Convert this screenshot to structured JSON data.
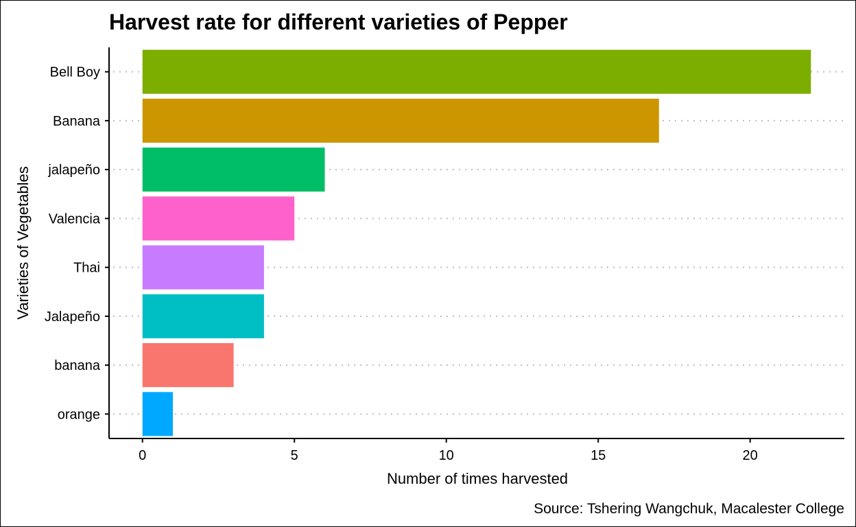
{
  "chart_data": {
    "type": "bar",
    "orientation": "horizontal",
    "title": "Harvest rate for different varieties of Pepper",
    "xlabel": "Number of times harvested",
    "ylabel": "Varieties of Vegetables",
    "caption": "Source: Tshering Wangchuk, Macalester College",
    "categories": [
      "Bell Boy",
      "Banana",
      "jalapeño",
      "Valencia",
      "Thai",
      "Jalapeño",
      "banana",
      "orange"
    ],
    "values": [
      22,
      17,
      6,
      5,
      4,
      4,
      3,
      1
    ],
    "colors": [
      "#7CAE00",
      "#CD9600",
      "#00BE67",
      "#FF61CC",
      "#C77CFF",
      "#00BFC4",
      "#F8766D",
      "#00A9FF"
    ],
    "xlim": [
      -1.1,
      23.1
    ],
    "xticks": [
      0,
      5,
      10,
      15,
      20
    ],
    "grid": "dotted horizontal lines at each category",
    "legend": "none"
  }
}
